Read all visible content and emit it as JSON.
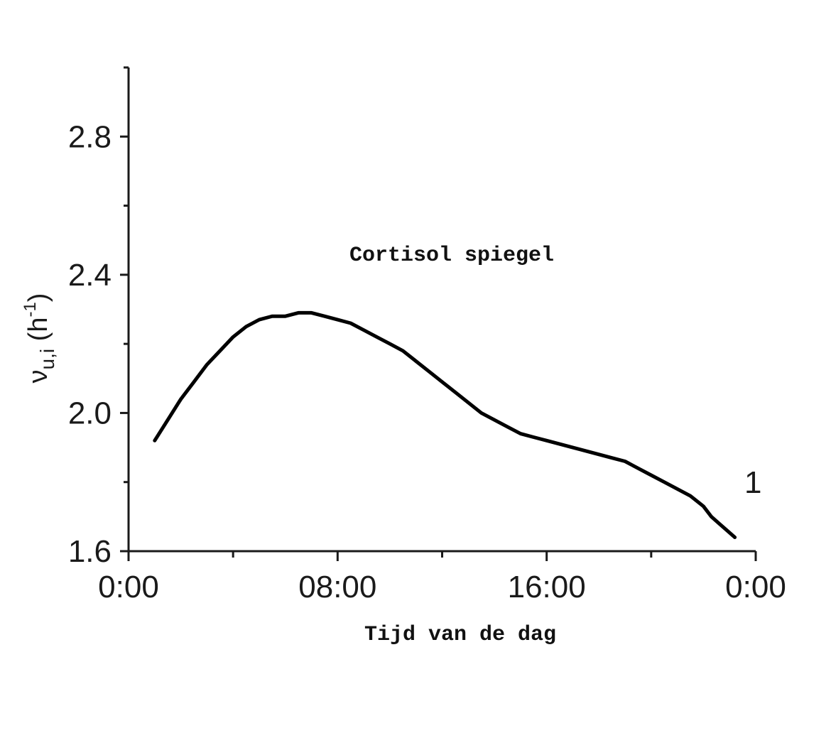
{
  "chart_data": {
    "type": "line",
    "title": "Cortisol spiegel",
    "xlabel": "Tijd van de dag",
    "ylabel_main": "ν",
    "ylabel_sub": "u,i",
    "ylabel_unit_open": " (h",
    "ylabel_unit_exp": "-1",
    "ylabel_unit_close": ")",
    "xlim": [
      0,
      24
    ],
    "ylim": [
      1.6,
      3.0
    ],
    "x_tick_labels": [
      {
        "x": 0,
        "label": "0:00"
      },
      {
        "x": 8,
        "label": "08:00"
      },
      {
        "x": 16,
        "label": "16:00"
      },
      {
        "x": 24,
        "label": "0:00"
      }
    ],
    "x_minor_ticks": [
      4,
      12,
      20
    ],
    "y_tick_labels": [
      {
        "y": 1.6,
        "label": "1.6"
      },
      {
        "y": 2.0,
        "label": "2.0"
      },
      {
        "y": 2.4,
        "label": "2.4"
      },
      {
        "y": 2.8,
        "label": "2.8"
      }
    ],
    "y_minor_ticks": [
      1.8,
      2.2,
      2.6,
      3.0
    ],
    "series": [
      {
        "label": "1",
        "color": "#000000",
        "x": [
          1.0,
          1.5,
          2.0,
          2.5,
          3.0,
          3.5,
          4.0,
          4.5,
          5.0,
          5.5,
          6.0,
          6.5,
          7.0,
          7.5,
          8.0,
          8.5,
          9.0,
          9.5,
          10.0,
          10.5,
          11.0,
          11.5,
          12.0,
          12.5,
          13.0,
          13.5,
          14.0,
          14.5,
          15.0,
          15.5,
          16.0,
          16.5,
          17.0,
          17.5,
          18.0,
          18.5,
          19.0,
          19.5,
          20.0,
          20.5,
          21.0,
          21.5,
          22.0,
          22.3,
          22.6,
          22.9,
          23.2
        ],
        "y": [
          1.92,
          1.98,
          2.04,
          2.09,
          2.14,
          2.18,
          2.22,
          2.25,
          2.27,
          2.28,
          2.28,
          2.29,
          2.29,
          2.28,
          2.27,
          2.26,
          2.24,
          2.22,
          2.2,
          2.18,
          2.15,
          2.12,
          2.09,
          2.06,
          2.03,
          2.0,
          1.98,
          1.96,
          1.94,
          1.93,
          1.92,
          1.91,
          1.9,
          1.89,
          1.88,
          1.87,
          1.86,
          1.84,
          1.82,
          1.8,
          1.78,
          1.76,
          1.73,
          1.7,
          1.68,
          1.66,
          1.64
        ]
      }
    ]
  }
}
